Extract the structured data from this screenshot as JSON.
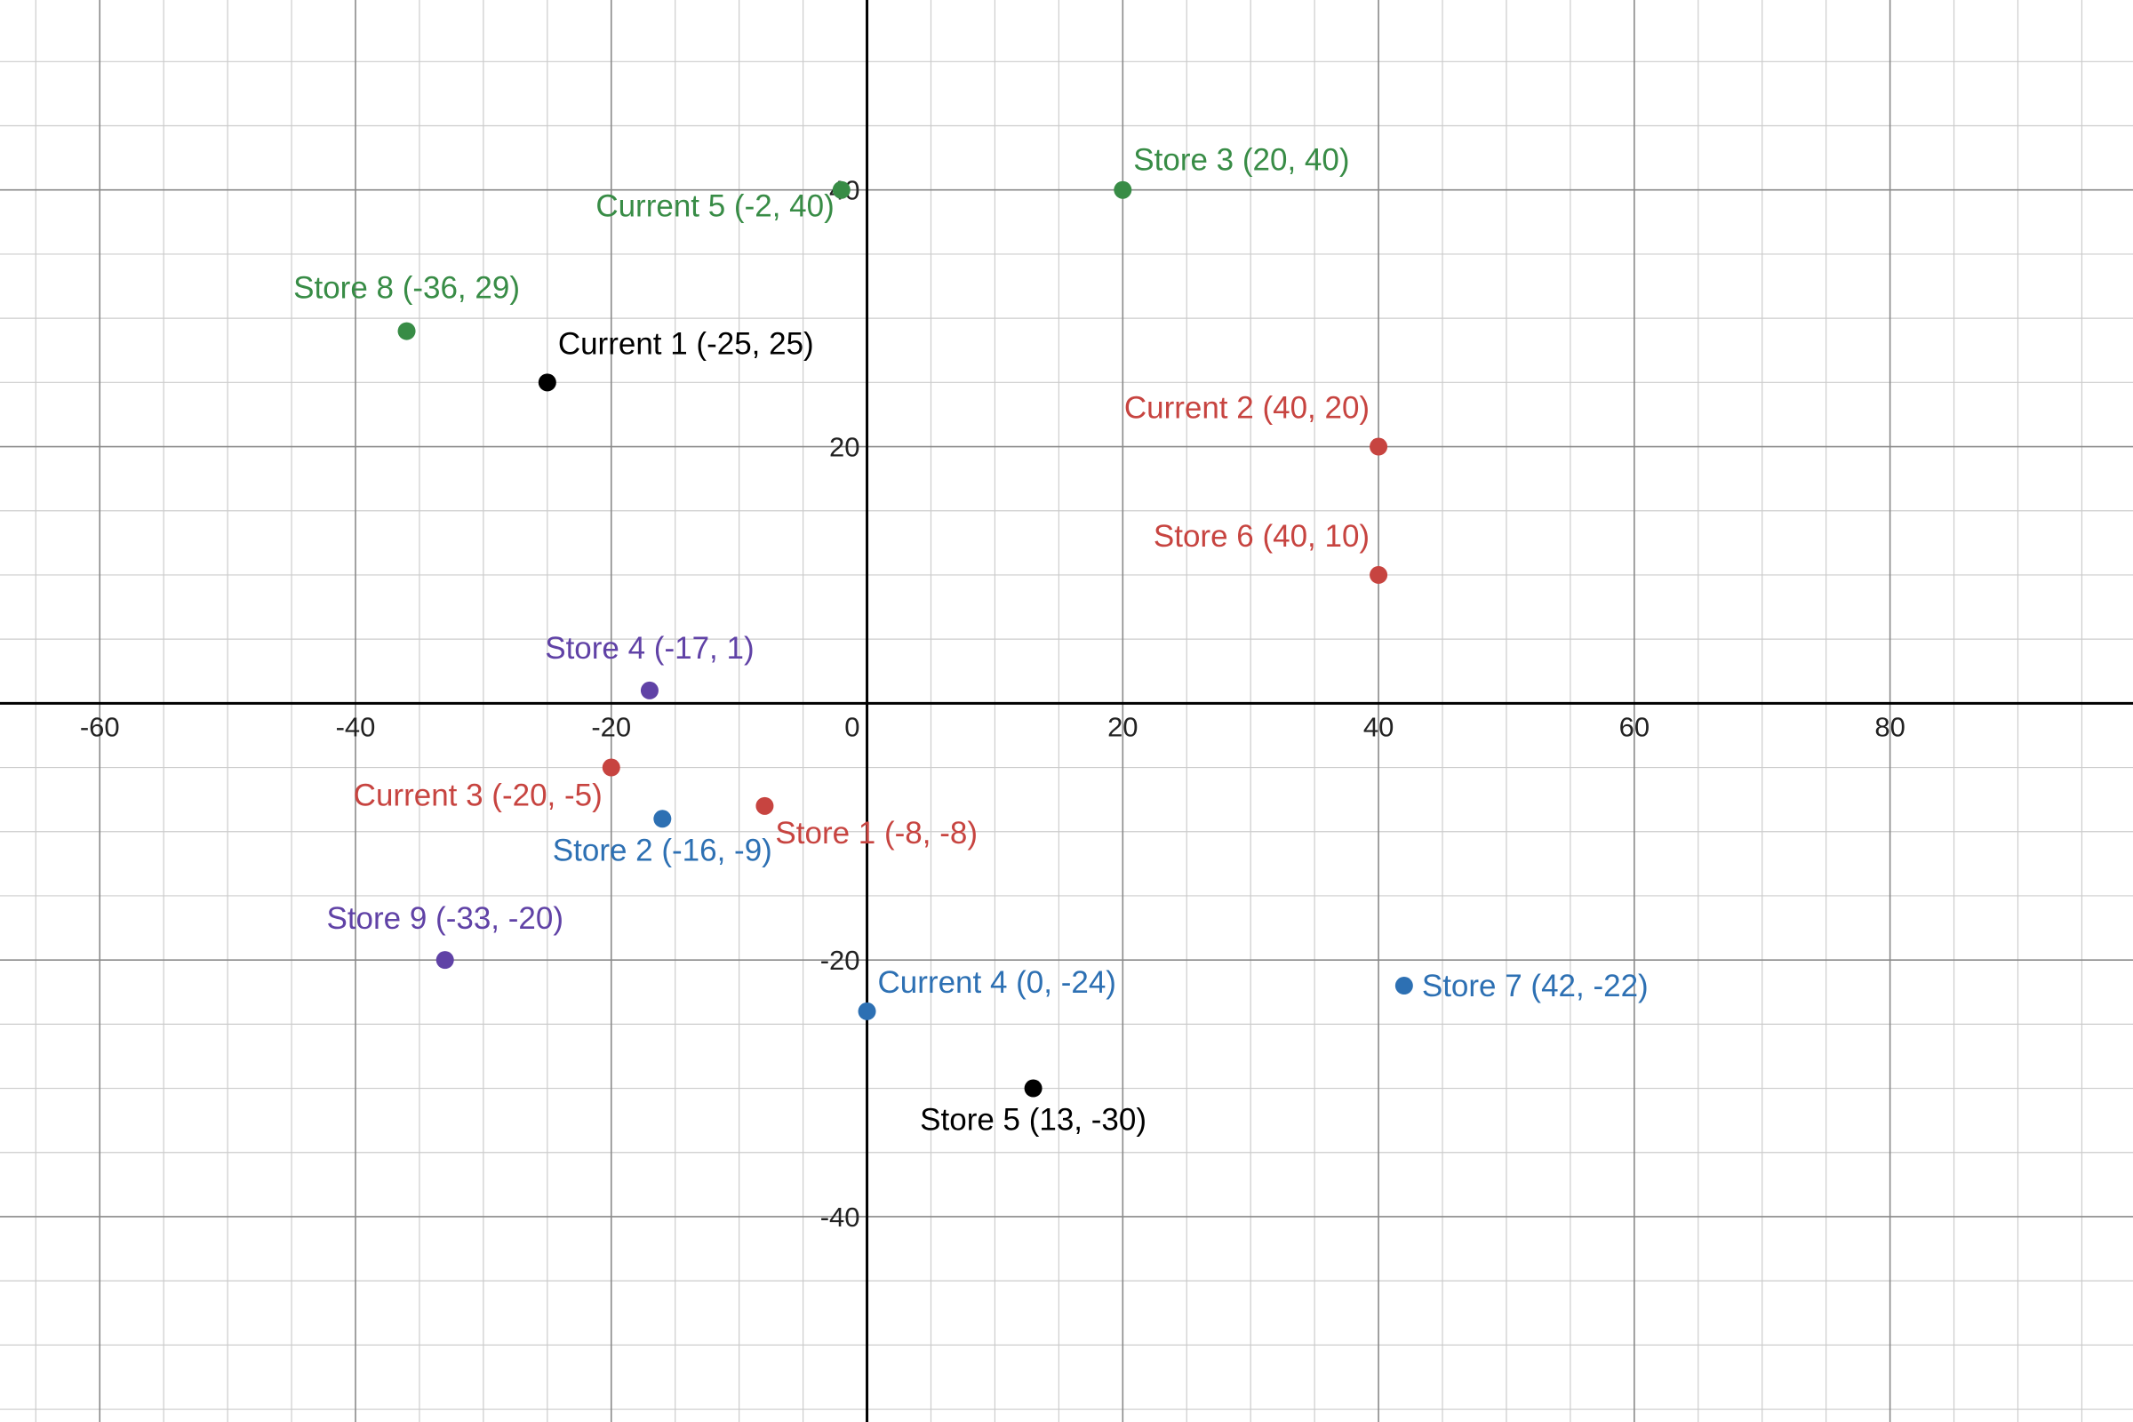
{
  "chart_data": {
    "type": "scatter",
    "title": "",
    "xlabel": "",
    "ylabel": "",
    "xlim": [
      -67.8,
      99
    ],
    "ylim": [
      -56,
      54.8
    ],
    "grid": true,
    "minor_step": 5,
    "major_step": 20,
    "x_ticks": [
      {
        "value": -60,
        "label": "-60"
      },
      {
        "value": -40,
        "label": "-40"
      },
      {
        "value": -20,
        "label": "-20"
      },
      {
        "value": 0,
        "label": "0"
      },
      {
        "value": 20,
        "label": "20"
      },
      {
        "value": 40,
        "label": "40"
      },
      {
        "value": 60,
        "label": "60"
      },
      {
        "value": 80,
        "label": "80"
      }
    ],
    "y_ticks": [
      {
        "value": 40,
        "label": "40"
      },
      {
        "value": 20,
        "label": "20"
      },
      {
        "value": -20,
        "label": "-20"
      },
      {
        "value": -40,
        "label": "-40"
      }
    ],
    "colors": {
      "black": "#000000",
      "red": "#c74440",
      "blue": "#2d70b3",
      "green": "#388c46",
      "purple": "#6042a6"
    },
    "points": [
      {
        "x": 20,
        "y": 40,
        "label": "Store 3 (20, 40)",
        "color": "green",
        "anchor": "start",
        "dx": 12,
        "dy": -22
      },
      {
        "x": -2,
        "y": 40,
        "label": "Current 5 (-2, 40)",
        "color": "green",
        "anchor": "end",
        "dx": -8,
        "dy": 30
      },
      {
        "x": -36,
        "y": 29,
        "label": "Store 8 (-36, 29)",
        "color": "green",
        "anchor": "middle",
        "dx": 0,
        "dy": -37
      },
      {
        "x": -25,
        "y": 25,
        "label": "Current 1 (-25, 25)",
        "color": "black",
        "anchor": "start",
        "dx": 12,
        "dy": -32
      },
      {
        "x": 40,
        "y": 20,
        "label": "Current 2 (40, 20)",
        "color": "red",
        "anchor": "end",
        "dx": -10,
        "dy": -32
      },
      {
        "x": 40,
        "y": 10,
        "label": "Store 6 (40, 10)",
        "color": "red",
        "anchor": "end",
        "dx": -10,
        "dy": -32
      },
      {
        "x": -17,
        "y": 1,
        "label": "Store 4 (-17, 1)",
        "color": "purple",
        "anchor": "middle",
        "dx": 0,
        "dy": -36
      },
      {
        "x": -20,
        "y": -5,
        "label": "Current 3 (-20, -5)",
        "color": "red",
        "anchor": "end",
        "dx": -10,
        "dy": 43
      },
      {
        "x": -16,
        "y": -9,
        "label": "Store 2 (-16, -9)",
        "color": "blue",
        "anchor": "middle",
        "dx": 0,
        "dy": 47
      },
      {
        "x": -8,
        "y": -8,
        "label": "Store 1 (-8, -8)",
        "color": "red",
        "anchor": "start",
        "dx": 12,
        "dy": 42
      },
      {
        "x": -33,
        "y": -20,
        "label": "Store 9 (-33, -20)",
        "color": "purple",
        "anchor": "middle",
        "dx": 0,
        "dy": -35
      },
      {
        "x": 0,
        "y": -24,
        "label": "Current 4 (0, -24)",
        "color": "blue",
        "anchor": "start",
        "dx": 12,
        "dy": -21
      },
      {
        "x": 42,
        "y": -22,
        "label": "Store 7 (42, -22)",
        "color": "blue",
        "anchor": "start",
        "dx": 20,
        "dy": 12
      },
      {
        "x": 13,
        "y": -30,
        "label": "Store 5 (13, -30)",
        "color": "black",
        "anchor": "middle",
        "dx": 0,
        "dy": 47
      }
    ]
  }
}
